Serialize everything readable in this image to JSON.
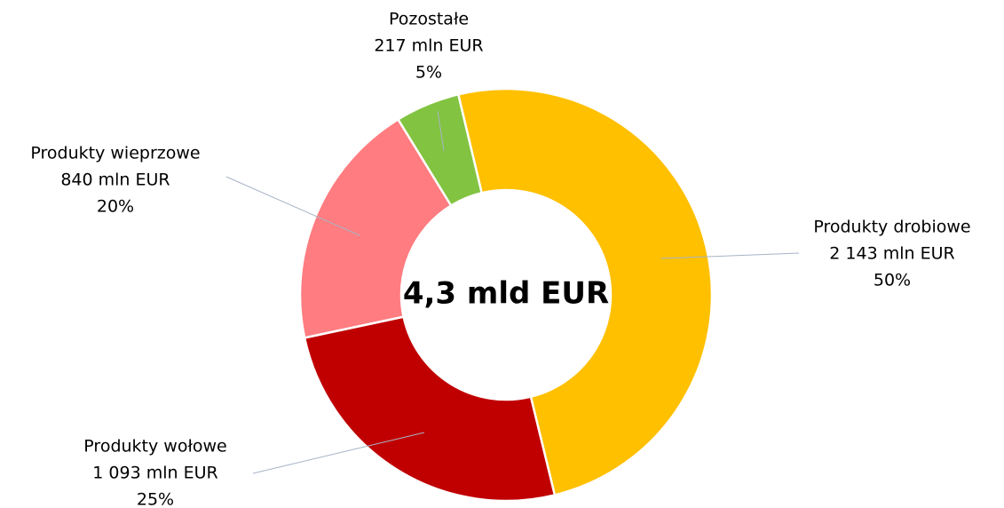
{
  "chart_data": {
    "type": "donut",
    "center_label": "4,3 mld EUR",
    "categories": [
      "Produkty drobiowe",
      "Produkty wołowe",
      "Produkty wieprzowe",
      "Pozostałe"
    ],
    "values": [
      2143,
      1093,
      840,
      217
    ],
    "value_labels": [
      "2 143 mln EUR",
      "1 093 mln EUR",
      "840 mln EUR",
      "217 mln EUR"
    ],
    "percent_labels": [
      "50%",
      "25%",
      "20%",
      "5%"
    ],
    "colors": [
      "#ffc000",
      "#c00000",
      "#ff7c80",
      "#82c341"
    ]
  }
}
